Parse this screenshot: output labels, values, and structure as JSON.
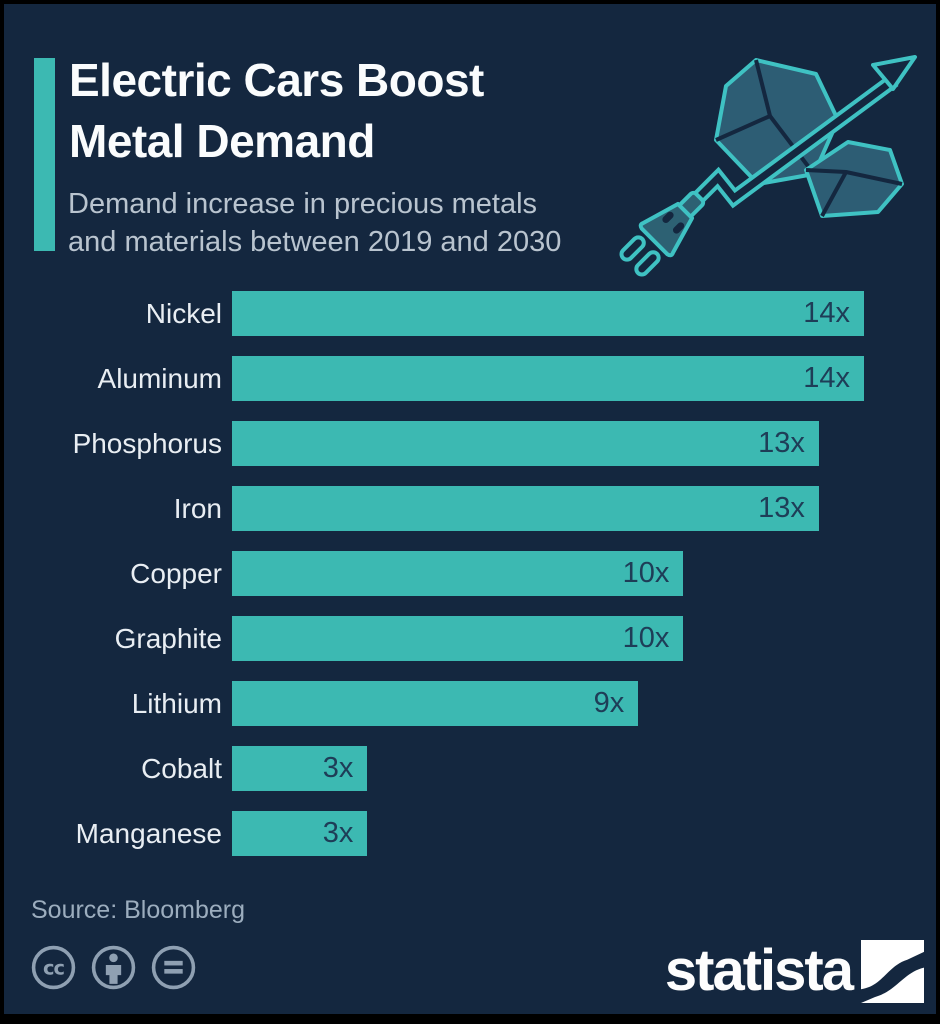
{
  "page": {
    "background_color": "#14273f",
    "frame_color": "#000000",
    "accent_color": "#3cb9b2"
  },
  "header": {
    "title_lines": [
      "Electric Cars Boost",
      "Metal Demand"
    ],
    "subtitle_lines": [
      "Demand increase in precious metals",
      "and materials between 2019 and 2030"
    ]
  },
  "illustration": {
    "description": "metal ore chunks pierced by rising line-chart arrow with electric plug",
    "outline_color": "#3fc2c3",
    "rock_fill_color": "#2d5d74"
  },
  "chart_data": {
    "type": "bar",
    "orientation": "horizontal",
    "title": "Electric Cars Boost Metal Demand",
    "subtitle": "Demand increase in precious metals and materials between 2019 and 2030",
    "categories": [
      "Nickel",
      "Aluminum",
      "Phosphorus",
      "Iron",
      "Copper",
      "Graphite",
      "Lithium",
      "Cobalt",
      "Manganese"
    ],
    "values": [
      14,
      14,
      13,
      13,
      10,
      10,
      9,
      3,
      3
    ],
    "value_labels": [
      "14x",
      "14x",
      "13x",
      "13x",
      "10x",
      "10x",
      "9x",
      "3x",
      "3x"
    ],
    "xlim": [
      0,
      14
    ],
    "grid": false,
    "legend": false,
    "bar_color": "#3cb9b2",
    "value_label_color": "#1e3d57",
    "category_label_color": "#e9eef3"
  },
  "footer": {
    "source": "Source: Bloomberg",
    "license_icons": [
      "creative-commons",
      "attribution",
      "no-derivatives"
    ],
    "license_icon_color": "#8fa0b2",
    "brand": "statista"
  }
}
